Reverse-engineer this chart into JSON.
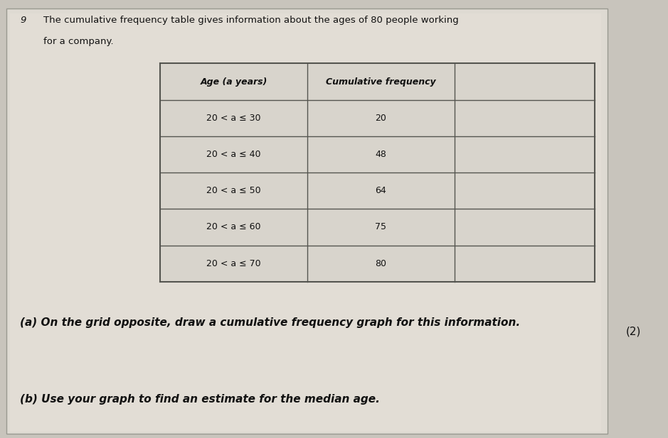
{
  "title_line1": "The cumulative frequency table gives information about the ages of 80 people working",
  "title_line2": "for a company.",
  "question_marker": "9",
  "table_headers": [
    "Age (a years)",
    "Cumulative frequency"
  ],
  "age_labels": [
    "20 < a ≤ 30",
    "20 < a ≤ 40",
    "20 < a ≤ 50",
    "20 < a ≤ 60",
    "20 < a ≤ 70"
  ],
  "cumulative_freq": [
    20,
    48,
    64,
    75,
    80
  ],
  "part_a_text": "(a) On the grid opposite, draw a cumulative frequency graph for this information.",
  "part_a_marks": "(2)",
  "part_b_text": "(b) Use your graph to find an estimate for the median age.",
  "outer_bg": "#c8c4bc",
  "page_bg": "#dedad2",
  "table_bg": "#d8d4cc",
  "table_line_color": "#555550",
  "text_color": "#111111",
  "font_size_title": 9.5,
  "font_size_qmark": 9.5,
  "font_size_table_hdr": 9,
  "font_size_table_data": 9,
  "font_size_part": 11
}
